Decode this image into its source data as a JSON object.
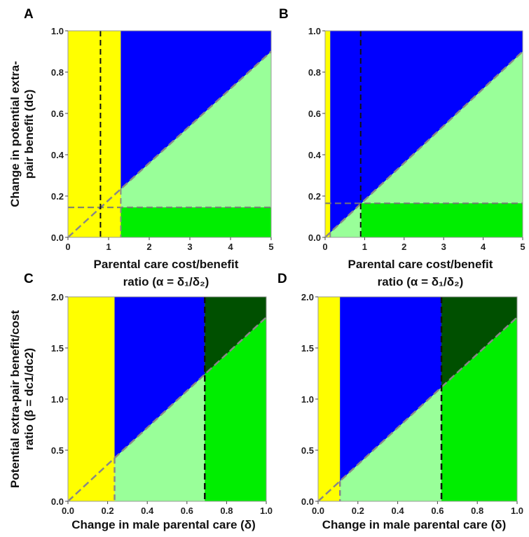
{
  "chart_data": [
    {
      "panel": "A",
      "type": "area",
      "xlim": [
        0,
        5
      ],
      "ylim": [
        0,
        1
      ],
      "xticks": [
        "0",
        "1",
        "2",
        "3",
        "4",
        "5"
      ],
      "yticks": [
        "0.0",
        "0.2",
        "0.4",
        "0.6",
        "0.8",
        "1.0"
      ],
      "xlabel_lines": [
        "Parental care cost/benefit",
        "ratio (α = δ₁/δ₂)"
      ],
      "ylabel_lines": [
        "Change in potential extra-",
        "pair benefit (dc)"
      ],
      "boundaries": {
        "vline": 1.3,
        "diagonal_slope": 0.18,
        "hline": 0.145,
        "dash_v_black": 0.8
      },
      "region_colors": {
        "yellow": "#ffff00",
        "blue": "#0000ff",
        "light_green": "#99ff99",
        "green": "#00ee00",
        "dark_green": "#005000"
      }
    },
    {
      "panel": "B",
      "type": "area",
      "xlim": [
        0,
        5
      ],
      "ylim": [
        0,
        1
      ],
      "xticks": [
        "0",
        "1",
        "2",
        "3",
        "4",
        "5"
      ],
      "yticks": [
        "0.0",
        "0.2",
        "0.4",
        "0.6",
        "0.8",
        "1.0"
      ],
      "xlabel_lines": [
        "Parental care cost/benefit",
        "ratio (α = δ₁/δ₂)"
      ],
      "boundaries": {
        "vline": 0.13,
        "diagonal_slope": 0.18,
        "hline": 0.165,
        "dash_v_black": 0.9
      },
      "region_colors": {
        "yellow": "#ffff00",
        "blue": "#0000ff",
        "light_green": "#99ff99",
        "green": "#00ee00",
        "dark_green": "#005000"
      }
    },
    {
      "panel": "C",
      "type": "area",
      "xlim": [
        0,
        1
      ],
      "ylim": [
        0,
        2
      ],
      "xticks": [
        "0.0",
        "0.2",
        "0.4",
        "0.6",
        "0.8",
        "1.0"
      ],
      "yticks": [
        "0.0",
        "0.5",
        "1.0",
        "1.5",
        "2.0"
      ],
      "xlabel_lines": [
        "Change in male parental care (δ)"
      ],
      "ylabel_lines": [
        "Potential extra-pair benefit/cost",
        "ratio (β = dc1/dc2)"
      ],
      "boundaries": {
        "vline": 0.235,
        "diagonal_slope": 1.8,
        "dash_v_black": 0.69
      },
      "region_colors": {
        "yellow": "#ffff00",
        "blue": "#0000ff",
        "light_green": "#99ff99",
        "green": "#00ee00",
        "dark_green": "#005000"
      }
    },
    {
      "panel": "D",
      "type": "area",
      "xlim": [
        0,
        1
      ],
      "ylim": [
        0,
        2
      ],
      "xticks": [
        "0.0",
        "0.2",
        "0.4",
        "0.6",
        "0.8",
        "1.0"
      ],
      "yticks": [
        "0.0",
        "0.5",
        "1.0",
        "1.5",
        "2.0"
      ],
      "xlabel_lines": [
        "Change in male parental care (δ)"
      ],
      "boundaries": {
        "vline": 0.11,
        "diagonal_slope": 1.8,
        "dash_v_black": 0.62
      },
      "region_colors": {
        "yellow": "#ffff00",
        "blue": "#0000ff",
        "light_green": "#99ff99",
        "green": "#00ee00",
        "dark_green": "#005000"
      }
    }
  ]
}
